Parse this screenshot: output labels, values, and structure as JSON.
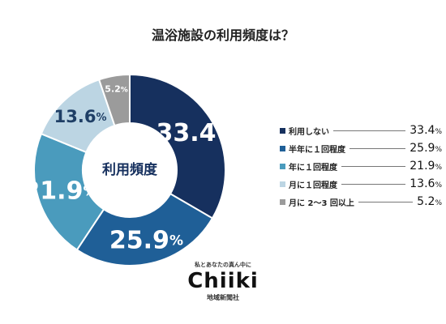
{
  "chart_data": {
    "type": "pie",
    "title": "温浴施設の利用頻度は？",
    "center_label": "利用頻度",
    "categories": [
      "利用しない",
      "半年に１回程度",
      "年に１回程度",
      "月に１回程度",
      "月に 2〜3 回以上"
    ],
    "values": [
      33.4,
      25.9,
      21.9,
      13.6,
      5.2
    ],
    "colors": [
      "#16305e",
      "#1f5f97",
      "#4a9bbd",
      "#bcd5e3",
      "#9b9b9b"
    ],
    "unit": "%",
    "legend_position": "right"
  },
  "brand": {
    "tagline": "私とあなたの真ん中に",
    "logo": "Chiiki",
    "sub": "地域新聞社"
  }
}
